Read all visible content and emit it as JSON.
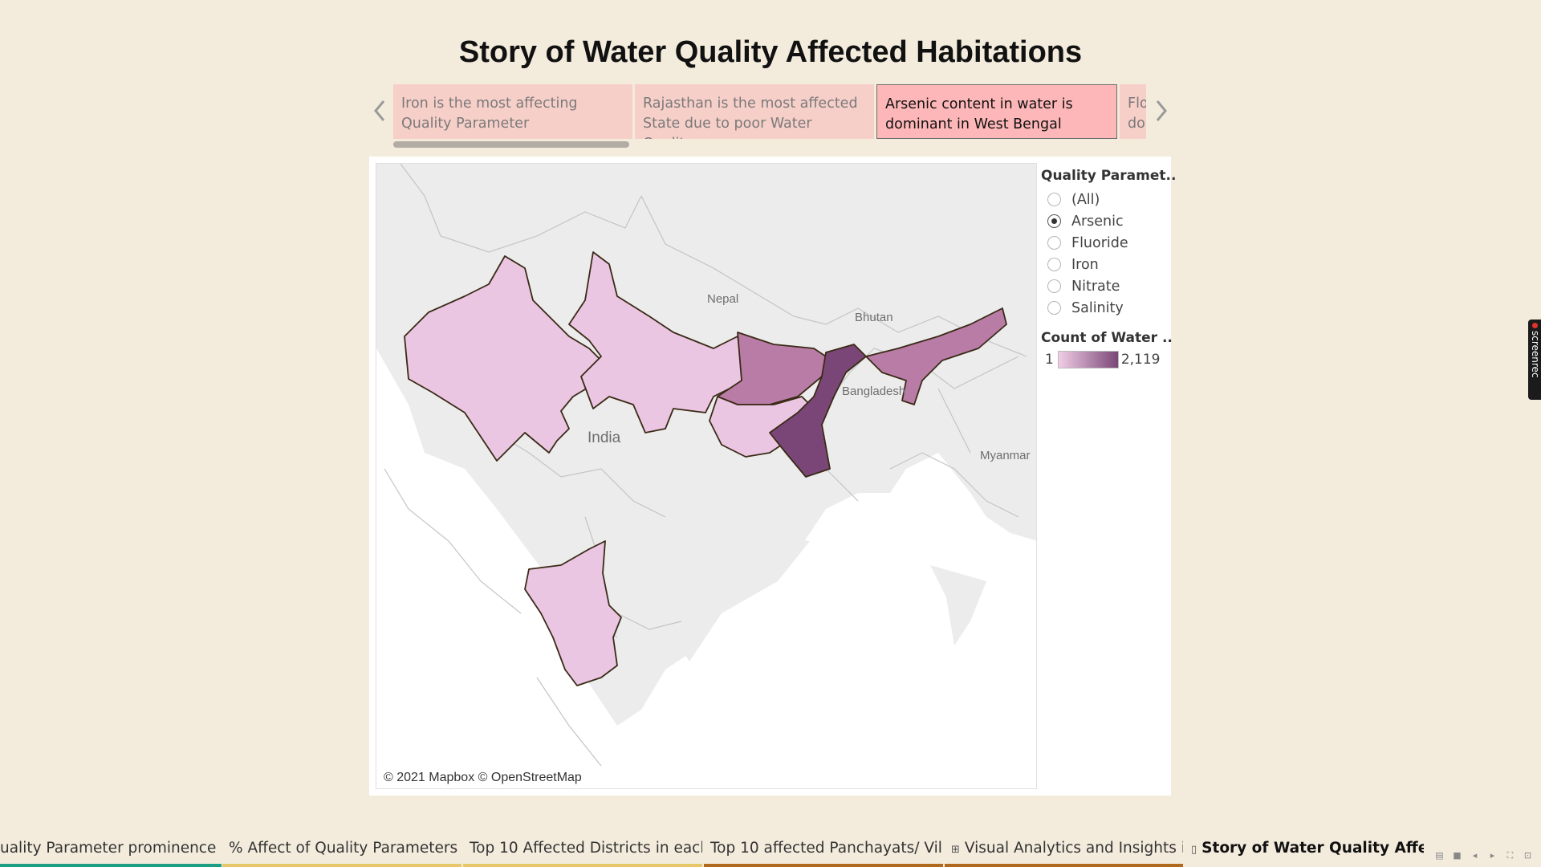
{
  "story": {
    "title": "Story of Water Quality Affected Habitations",
    "points": [
      {
        "text": "Iron is the most affecting Quality Parameter",
        "active": false
      },
      {
        "text": "Rajasthan is the most affected State due to poor Water Quality",
        "active": false
      },
      {
        "text": "Arsenic content in water is dominant in West Bengal",
        "active": true
      },
      {
        "text": "Flo dor",
        "active": false
      }
    ]
  },
  "map": {
    "attribution": "© 2021 Mapbox © OpenStreetMap",
    "labels": {
      "nepal": "Nepal",
      "bhutan": "Bhutan",
      "bangladesh": "Bangladesh",
      "india": "India",
      "myanmar": "Myanmar"
    },
    "colors": {
      "low": "#ebc6e2",
      "mid": "#b97ca6",
      "high": "#7a4677",
      "outline": "#3a2a16"
    },
    "regions": [
      {
        "name": "Rajasthan",
        "level": "low"
      },
      {
        "name": "Uttar Pradesh",
        "level": "low"
      },
      {
        "name": "Bihar",
        "level": "mid"
      },
      {
        "name": "Jharkhand",
        "level": "low"
      },
      {
        "name": "West Bengal",
        "level": "high"
      },
      {
        "name": "Assam",
        "level": "mid"
      },
      {
        "name": "Karnataka",
        "level": "low"
      }
    ]
  },
  "legend": {
    "filter_title": "Quality Paramet..",
    "options": [
      {
        "label": "(All)",
        "checked": false
      },
      {
        "label": "Arsenic",
        "checked": true
      },
      {
        "label": "Fluoride",
        "checked": false
      },
      {
        "label": "Iron",
        "checked": false
      },
      {
        "label": "Nitrate",
        "checked": false
      },
      {
        "label": "Salinity",
        "checked": false
      }
    ],
    "count_title": "Count of Water ..",
    "min": "1",
    "max": "2,119",
    "ramp_colors": [
      "#f1cde6",
      "#7a4677"
    ]
  },
  "tabs": [
    {
      "label": "uality Parameter prominence ...",
      "color": "#e45a6b",
      "active": false,
      "icon": ""
    },
    {
      "label": "% Affect of Quality Parameters i...",
      "color": "#1f9e86",
      "active": false,
      "icon": ""
    },
    {
      "label": "Top 10 Affected Districts in each...",
      "color": "#e6c86a",
      "active": false,
      "icon": ""
    },
    {
      "label": "Top 10 affected Panchayats/ Vill...",
      "color": "#e6c86a",
      "active": false,
      "icon": ""
    },
    {
      "label": "Visual Analytics and Insights i...",
      "color": "#b06a1e",
      "active": false,
      "icon": "⊞"
    },
    {
      "label": "Story of Water Quality Affec...",
      "color": "#b06a1e",
      "active": true,
      "icon": "▯"
    }
  ],
  "overlay": {
    "screenrec": "screenrec"
  }
}
